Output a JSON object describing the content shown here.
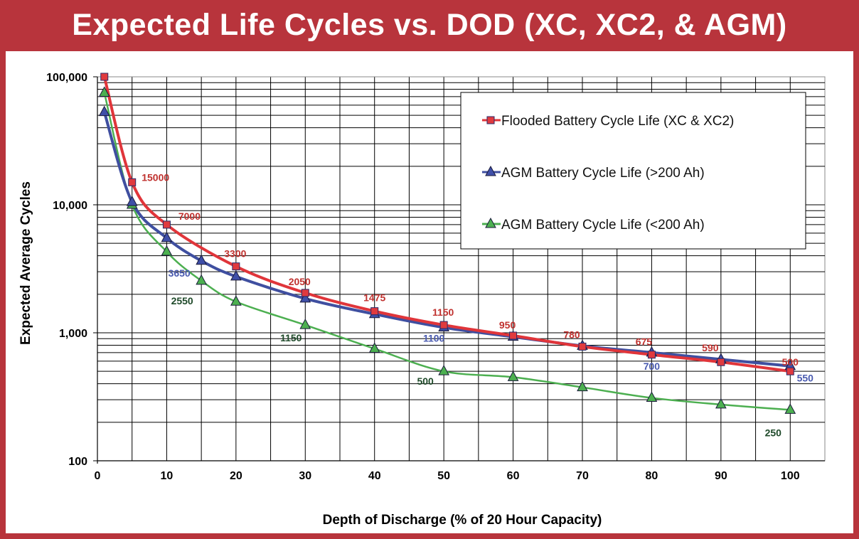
{
  "chart_data": {
    "type": "line",
    "title": "Expected Life Cycles vs. DOD (XC, XC2, & AGM)",
    "xlabel": "Depth of Discharge (% of 20 Hour Capacity)",
    "ylabel": "Expected Average Cycles",
    "xlim": [
      0,
      105
    ],
    "ylim": [
      100,
      100000
    ],
    "yscale": "log",
    "xticks": [
      "0",
      "10",
      "20",
      "30",
      "40",
      "50",
      "60",
      "70",
      "80",
      "90",
      "100"
    ],
    "yticks": [
      "100",
      "1,000",
      "10,000",
      "100,000"
    ],
    "grid": true,
    "legend_position": "top-right",
    "series": [
      {
        "name": "Flooded Battery Cycle Life (XC & XC2)",
        "color": "#e0353a",
        "marker": "square",
        "marker_color": "#e03a3e",
        "x": [
          1,
          5,
          10,
          20,
          30,
          40,
          50,
          60,
          70,
          80,
          90,
          100
        ],
        "y": [
          100000,
          15000,
          7000,
          3300,
          2050,
          1475,
          1150,
          950,
          780,
          675,
          590,
          500
        ],
        "labels": [
          {
            "x": 5,
            "text": "15000"
          },
          {
            "x": 10,
            "text": "7000"
          },
          {
            "x": 20,
            "text": "3300"
          },
          {
            "x": 30,
            "text": "2050"
          },
          {
            "x": 40,
            "text": "1475"
          },
          {
            "x": 50,
            "text": "1150"
          },
          {
            "x": 60,
            "text": "950"
          },
          {
            "x": 70,
            "text": "780"
          },
          {
            "x": 80,
            "text": "675"
          },
          {
            "x": 90,
            "text": "590"
          },
          {
            "x": 100,
            "text": "500"
          }
        ],
        "label_color": "#c0322f"
      },
      {
        "name": "AGM Battery Cycle Life (>200 Ah)",
        "color": "#3f4fa0",
        "marker": "triangle",
        "marker_color": "#3f4fa8",
        "x": [
          1,
          5,
          10,
          15,
          20,
          30,
          40,
          50,
          60,
          70,
          80,
          90,
          100
        ],
        "y": [
          53000,
          10500,
          5500,
          3650,
          2750,
          1850,
          1400,
          1100,
          930,
          790,
          700,
          620,
          550
        ],
        "labels": [
          {
            "x": 15,
            "text": "3650"
          },
          {
            "x": 50,
            "text": "1100"
          },
          {
            "x": 80,
            "text": "700"
          },
          {
            "x": 100,
            "text": "550"
          }
        ],
        "label_color": "#4a5bb0"
      },
      {
        "name": "AGM Battery Cycle Life (<200 Ah)",
        "color": "#4caf50",
        "marker": "triangle",
        "marker_color": "#4cb050",
        "x": [
          1,
          5,
          10,
          15,
          20,
          30,
          40,
          50,
          60,
          70,
          80,
          90,
          100
        ],
        "y": [
          75000,
          10000,
          4300,
          2550,
          1750,
          1150,
          750,
          500,
          450,
          375,
          310,
          275,
          250
        ],
        "labels": [
          {
            "x": 15,
            "text": "2550"
          },
          {
            "x": 30,
            "text": "1150"
          },
          {
            "x": 50,
            "text": "500"
          },
          {
            "x": 100,
            "text": "250"
          }
        ],
        "label_color": "#1f4a2a"
      }
    ]
  }
}
